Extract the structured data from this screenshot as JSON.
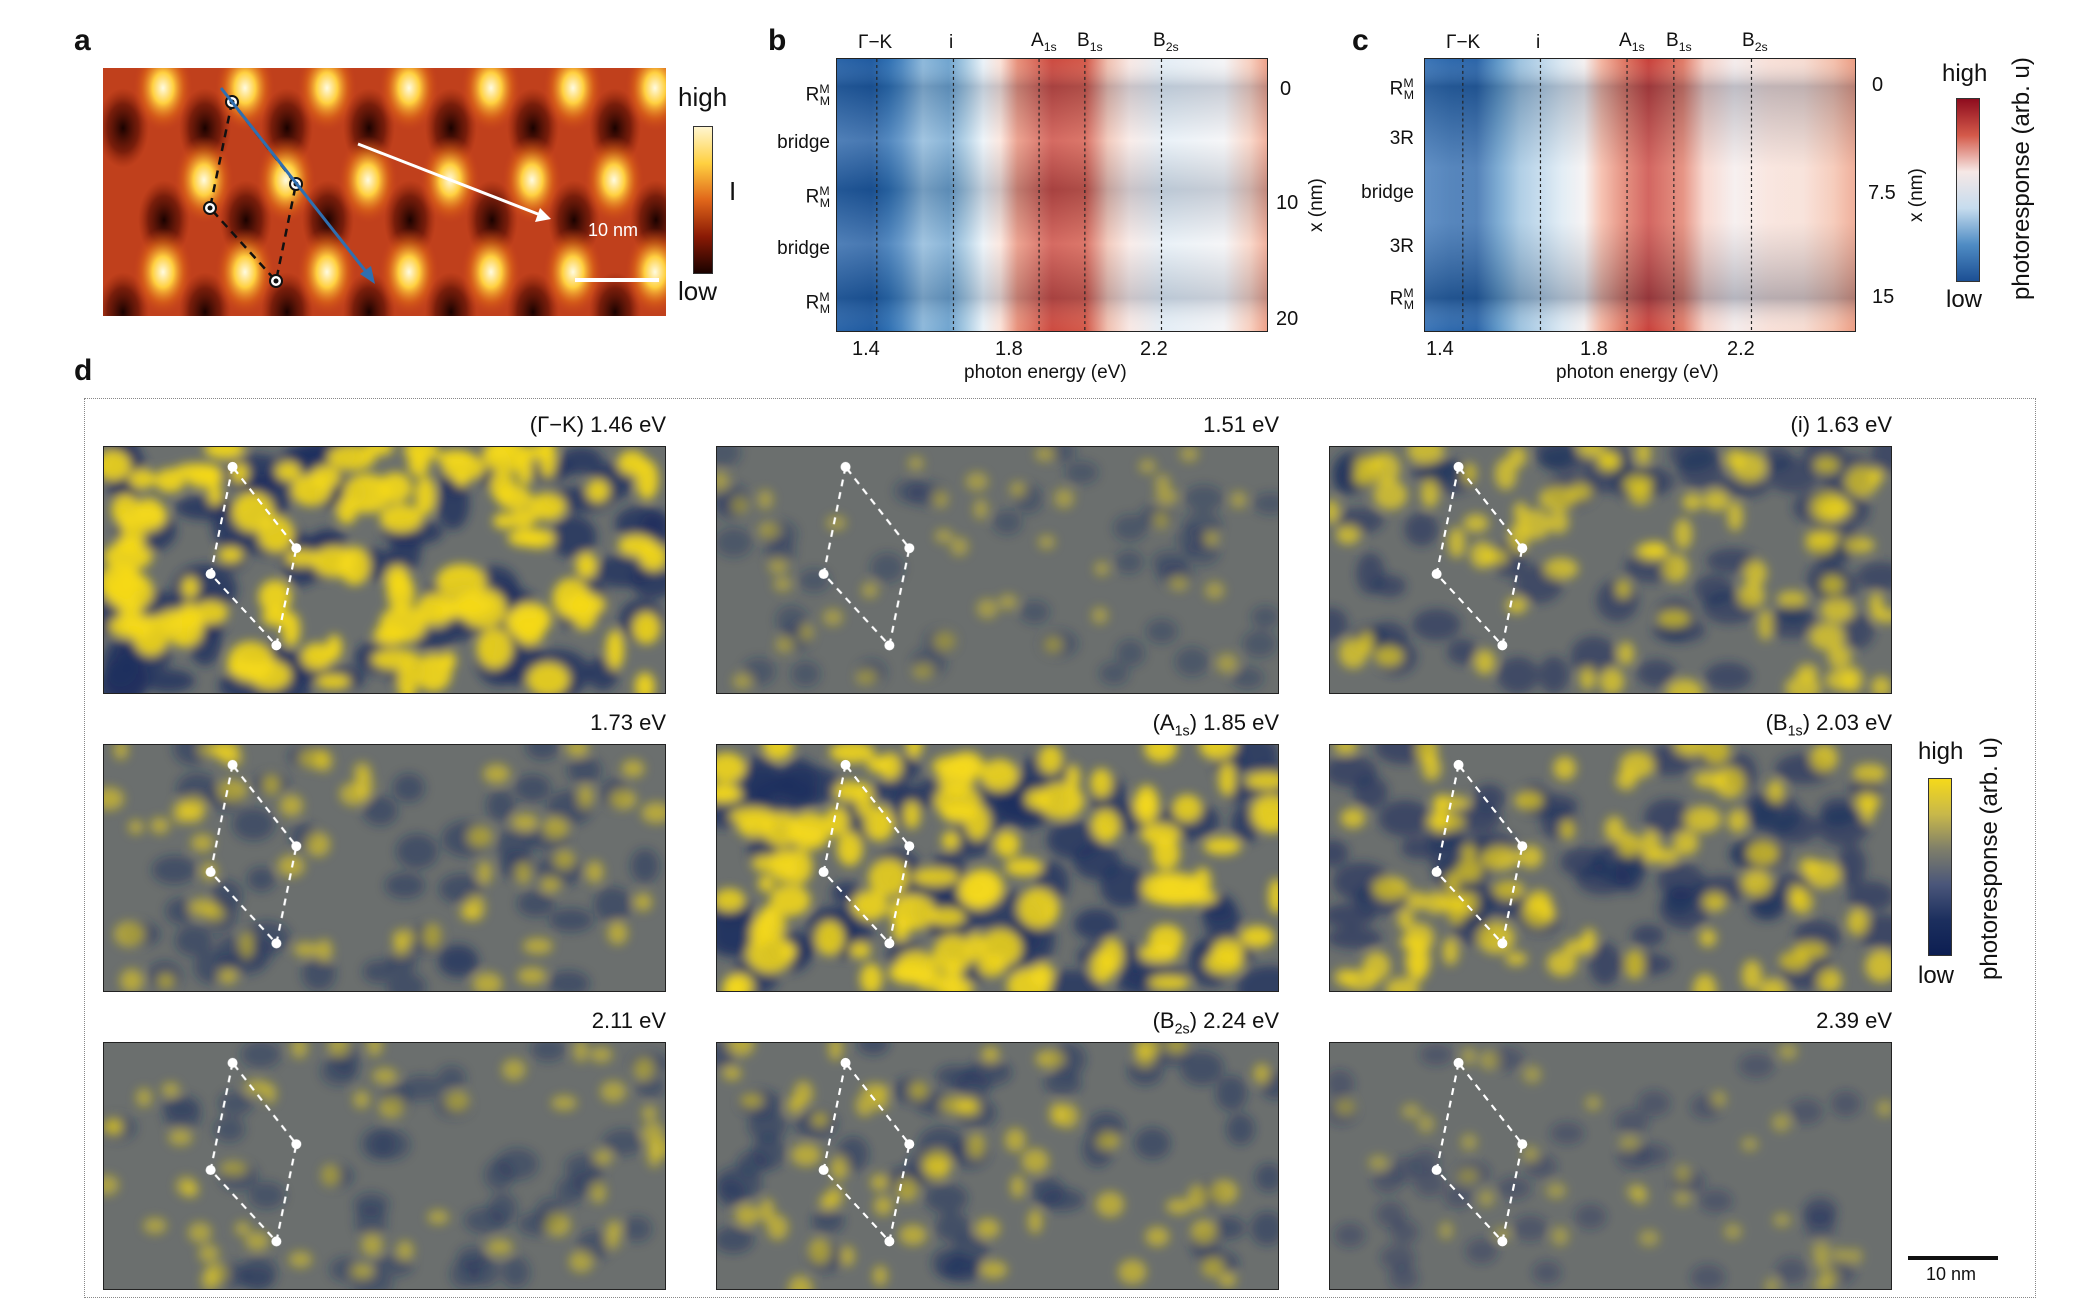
{
  "panels": {
    "a": {
      "letter": "a",
      "colorbar_high": "high",
      "colorbar_mid": "I",
      "colorbar_low": "low",
      "scalebar": "10 nm"
    },
    "b": {
      "letter": "b",
      "top_labels": [
        "Γ−K",
        "i",
        "A1s",
        "B1s",
        "B2s"
      ],
      "row_labels": [
        "RMM",
        "bridge",
        "RMM",
        "bridge",
        "RMM"
      ],
      "x_ticks": [
        "1.4",
        "1.8",
        "2.2"
      ],
      "x_label": "photon energy (eV)",
      "right_ticks": [
        "0",
        "10",
        "20"
      ],
      "right_label": "x (nm)"
    },
    "c": {
      "letter": "c",
      "top_labels": [
        "Γ−K",
        "i",
        "A1s",
        "B1s",
        "B2s"
      ],
      "row_labels": [
        "RMM",
        "3R",
        "bridge",
        "3R",
        "RMM"
      ],
      "x_ticks": [
        "1.4",
        "1.8",
        "2.2"
      ],
      "x_label": "photon energy (eV)",
      "right_ticks": [
        "0",
        "7.5",
        "15"
      ],
      "right_label": "x (nm)",
      "colorbar_high": "high",
      "colorbar_low": "low",
      "colorbar_label": "photoresponse (arb. u)"
    },
    "d": {
      "letter": "d",
      "maps": [
        {
          "prefix": "(Γ−K)",
          "energy": "1.46 eV"
        },
        {
          "prefix": "",
          "energy": "1.51 eV"
        },
        {
          "prefix": "(i)",
          "energy": "1.63 eV"
        },
        {
          "prefix": "",
          "energy": "1.73 eV"
        },
        {
          "prefix": "(A1s)",
          "energy": "1.85 eV"
        },
        {
          "prefix": "(B1s)",
          "energy": "2.03 eV"
        },
        {
          "prefix": "",
          "energy": "2.11 eV"
        },
        {
          "prefix": "(B2s)",
          "energy": "2.24 eV"
        },
        {
          "prefix": "",
          "energy": "2.39 eV"
        }
      ],
      "colorbar_high": "high",
      "colorbar_low": "low",
      "colorbar_label": "photoresponse (arb. u)",
      "scalebar": "10 nm"
    }
  },
  "colors": {
    "afm_dark": "#2a0600",
    "afm_mid": "#c8401a",
    "afm_bright": "#fff4c0",
    "spec_blue": "#1f5aa0",
    "spec_red": "#b2182b",
    "map_base": "#6b6f6e",
    "map_yellow": "#f5d91a",
    "map_dark": "#1c2f5e"
  }
}
